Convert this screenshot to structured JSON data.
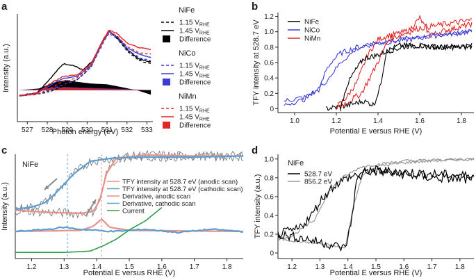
{
  "chart_data": [
    {
      "panel": "a",
      "type": "line",
      "xlabel": "Photon energy (eV)",
      "ylabel": "Intensity (a.u.)",
      "xlim": [
        526.5,
        533.3
      ],
      "xticks": [
        "527",
        "528",
        "529",
        "530",
        "531",
        "532",
        "533"
      ],
      "legend_groups": [
        {
          "title": "NiFe",
          "entries": [
            "1.15 V",
            "1.45 V",
            "Difference"
          ],
          "sub": "RHE"
        },
        {
          "title": "NiCo",
          "entries": [
            "1.15 V",
            "1.45 V",
            "Difference"
          ],
          "sub": "RHE"
        },
        {
          "title": "NiMn",
          "entries": [
            "1.15 V",
            "1.45 V",
            "Difference"
          ],
          "sub": "RHE"
        }
      ],
      "colors": {
        "NiFe": "#000000",
        "NiCo": "#3d3dd6",
        "NiMn": "#e02626"
      },
      "series": [
        {
          "name": "NiFe 1.15 V",
          "x": [
            526.6,
            527.5,
            528.2,
            528.8,
            529.5,
            530.2,
            530.8,
            531.1,
            531.5,
            532.0,
            532.6,
            533.2
          ],
          "y": [
            0.02,
            0.04,
            0.08,
            0.14,
            0.22,
            0.38,
            0.7,
            0.82,
            0.74,
            0.58,
            0.46,
            0.42
          ]
        },
        {
          "name": "NiFe 1.45 V",
          "x": [
            526.6,
            527.5,
            528.2,
            528.8,
            529.3,
            529.8,
            530.3,
            530.8,
            531.1,
            531.5,
            532.0,
            532.6,
            533.2
          ],
          "y": [
            0.02,
            0.06,
            0.25,
            0.42,
            0.4,
            0.34,
            0.46,
            0.72,
            0.83,
            0.75,
            0.6,
            0.48,
            0.44
          ]
        },
        {
          "name": "NiCo 1.15 V",
          "x": [
            526.6,
            527.5,
            528.2,
            528.8,
            529.5,
            530.2,
            530.8,
            531.1,
            531.5,
            532.0,
            532.6,
            533.2
          ],
          "y": [
            0.02,
            0.04,
            0.1,
            0.16,
            0.22,
            0.38,
            0.68,
            0.8,
            0.74,
            0.6,
            0.5,
            0.46
          ]
        },
        {
          "name": "NiCo 1.45 V",
          "x": [
            526.6,
            527.5,
            528.2,
            528.8,
            529.5,
            530.2,
            530.8,
            531.1,
            531.5,
            532.0,
            532.6,
            533.2
          ],
          "y": [
            0.02,
            0.05,
            0.16,
            0.24,
            0.26,
            0.4,
            0.7,
            0.82,
            0.76,
            0.62,
            0.54,
            0.5
          ]
        },
        {
          "name": "NiMn 1.15 V",
          "x": [
            526.6,
            527.5,
            528.2,
            528.8,
            529.5,
            530.2,
            530.8,
            531.1,
            531.5,
            532.0,
            532.6,
            533.2
          ],
          "y": [
            0.02,
            0.04,
            0.12,
            0.2,
            0.24,
            0.4,
            0.7,
            0.82,
            0.77,
            0.64,
            0.56,
            0.54
          ]
        },
        {
          "name": "NiMn 1.45 V",
          "x": [
            526.6,
            527.5,
            528.2,
            528.8,
            529.5,
            530.2,
            530.8,
            531.1,
            531.5,
            532.0,
            532.6,
            533.2
          ],
          "y": [
            0.02,
            0.05,
            0.18,
            0.26,
            0.28,
            0.42,
            0.72,
            0.84,
            0.8,
            0.68,
            0.62,
            0.6
          ]
        }
      ],
      "difference": [
        {
          "name": "NiFe Difference",
          "x": [
            526.6,
            527.6,
            528.3,
            528.9,
            529.5,
            530.2,
            531.0,
            531.8,
            532.6,
            533.2
          ],
          "y": [
            0.0,
            0.08,
            0.32,
            0.42,
            0.35,
            0.28,
            0.25,
            0.12,
            -0.02,
            -0.18
          ]
        },
        {
          "name": "NiCo Difference",
          "x": [
            526.6,
            527.6,
            528.3,
            528.9,
            529.5,
            530.2,
            531.0,
            531.8,
            532.6,
            533.2
          ],
          "y": [
            0.0,
            0.05,
            0.12,
            0.14,
            0.12,
            0.1,
            0.08,
            0.06,
            0.03,
            0.02
          ]
        },
        {
          "name": "NiMn Difference",
          "x": [
            526.6,
            527.6,
            528.3,
            528.9,
            529.5,
            530.2,
            531.0,
            531.8,
            532.6,
            533.2
          ],
          "y": [
            0.0,
            0.04,
            0.1,
            0.12,
            0.1,
            0.08,
            0.06,
            0.04,
            0.02,
            0.01
          ]
        }
      ]
    },
    {
      "panel": "b",
      "type": "line",
      "xlabel": "Potential E versus RHE (V)",
      "ylabel": "TFY intensity at 528.7 eV",
      "xlim": [
        0.92,
        1.86
      ],
      "ylim": [
        -0.05,
        1.25
      ],
      "xticks": [
        "1.0",
        "1.2",
        "1.4",
        "1.6",
        "1.8"
      ],
      "yticks": [
        "0",
        "0.2",
        "0.4",
        "0.6",
        "0.8",
        "1.0",
        "1.2"
      ],
      "legend": [
        "NiFe",
        "NiCo",
        "NiMn"
      ],
      "colors": {
        "NiFe": "#000000",
        "NiCo": "#3d3dd6",
        "NiMn": "#e02626"
      },
      "series": [
        {
          "name": "NiFe anodic",
          "x": [
            1.15,
            1.25,
            1.33,
            1.38,
            1.41,
            1.44,
            1.5,
            1.6,
            1.7,
            1.85
          ],
          "y": [
            0.0,
            0.04,
            0.1,
            0.05,
            0.28,
            0.75,
            0.82,
            0.82,
            0.8,
            0.8
          ]
        },
        {
          "name": "NiFe cathodic",
          "x": [
            1.85,
            1.7,
            1.55,
            1.45,
            1.4,
            1.33,
            1.28,
            1.25,
            1.22
          ],
          "y": [
            0.82,
            0.8,
            0.82,
            0.75,
            0.7,
            0.65,
            0.45,
            0.3,
            0.0
          ]
        },
        {
          "name": "NiCo",
          "x": [
            0.95,
            1.05,
            1.12,
            1.15,
            1.18,
            1.22,
            1.3,
            1.4,
            1.5,
            1.6,
            1.7,
            1.85
          ],
          "y": [
            0.1,
            0.15,
            0.25,
            0.5,
            0.62,
            0.72,
            0.8,
            0.85,
            0.88,
            0.92,
            0.96,
            1.0
          ]
        },
        {
          "name": "NiMn",
          "x": [
            1.2,
            1.25,
            1.3,
            1.35,
            1.4,
            1.45,
            1.5,
            1.55,
            1.6,
            1.65,
            1.7,
            1.85
          ],
          "y": [
            0.02,
            0.15,
            0.35,
            0.7,
            0.9,
            0.95,
            0.98,
            1.02,
            1.18,
            0.95,
            1.0,
            1.1
          ]
        }
      ]
    },
    {
      "panel": "c",
      "type": "line",
      "title": "NiFe",
      "xlabel": "Potential E versus RHE (V)",
      "ylabel": "Intensity (a.u.)",
      "xlim": [
        1.15,
        1.85
      ],
      "xticks": [
        "1.2",
        "1.3",
        "1.4",
        "1.5",
        "1.6",
        "1.7",
        "1.8"
      ],
      "vlines": [
        1.31,
        1.415
      ],
      "legend": [
        "TFY intensity at 528.7 eV (anodic scan)",
        "TFY intensity at 528.7 eV (cathodic scan)",
        "Derivative, anodic scan",
        "Derivative, cathodic scan",
        "Current"
      ],
      "colors": {
        "anodic": "#e8908a",
        "cathodic": "#5a9fd4",
        "current": "#2a9d4a",
        "raw": "#7a7a7a"
      },
      "series": [
        {
          "name": "TFY anodic",
          "x": [
            1.15,
            1.25,
            1.35,
            1.39,
            1.41,
            1.43,
            1.46,
            1.55,
            1.7,
            1.85
          ],
          "y": [
            0.35,
            0.33,
            0.32,
            0.34,
            0.45,
            0.7,
            0.85,
            0.88,
            0.87,
            0.87
          ]
        },
        {
          "name": "TFY cathodic",
          "x": [
            1.85,
            1.7,
            1.55,
            1.45,
            1.38,
            1.33,
            1.3,
            1.27,
            1.24,
            1.2,
            1.15
          ],
          "y": [
            0.87,
            0.86,
            0.86,
            0.85,
            0.82,
            0.7,
            0.6,
            0.5,
            0.42,
            0.38,
            0.36
          ]
        },
        {
          "name": "Derivative anodic",
          "x": [
            1.15,
            1.35,
            1.39,
            1.415,
            1.44,
            1.5,
            1.85
          ],
          "y": [
            0.0,
            0.01,
            0.05,
            0.12,
            0.04,
            0.01,
            0.0
          ]
        },
        {
          "name": "Derivative cathodic",
          "x": [
            1.15,
            1.25,
            1.3,
            1.35,
            1.45,
            1.55,
            1.65,
            1.75,
            1.85
          ],
          "y": [
            0.0,
            0.02,
            0.04,
            0.02,
            0.0,
            0.02,
            -0.01,
            0.02,
            0.0
          ]
        },
        {
          "name": "Current",
          "x": [
            1.15,
            1.3,
            1.38,
            1.42,
            1.46,
            1.5,
            1.55,
            1.6
          ],
          "y": [
            -0.08,
            -0.08,
            -0.07,
            -0.03,
            0.02,
            0.09,
            0.16,
            0.26
          ]
        }
      ]
    },
    {
      "panel": "d",
      "type": "line",
      "title": "NiFe",
      "xlabel": "Potential E versus RHE (V)",
      "ylabel": "TFY intensity (a.u.)",
      "xlim": [
        1.15,
        1.85
      ],
      "ylim": [
        0.0,
        1.05
      ],
      "xticks": [
        "1.2",
        "1.3",
        "1.4",
        "1.5",
        "1.6",
        "1.7",
        "1.8"
      ],
      "yticks": [
        "0",
        "0.2",
        "0.4",
        "0.6",
        "0.8",
        "1.0"
      ],
      "legend": [
        "528.7 eV",
        "856.2 eV"
      ],
      "colors": {
        "528.7 eV": "#000000",
        "856.2 eV": "#999999"
      },
      "series": [
        {
          "name": "528.7 eV anodic",
          "x": [
            1.15,
            1.25,
            1.35,
            1.39,
            1.41,
            1.43,
            1.46,
            1.55,
            1.7,
            1.85
          ],
          "y": [
            0.2,
            0.15,
            0.08,
            0.05,
            0.3,
            0.75,
            0.88,
            0.85,
            0.8,
            0.78
          ]
        },
        {
          "name": "528.7 eV cathodic",
          "x": [
            1.85,
            1.7,
            1.5,
            1.45,
            1.4,
            1.35,
            1.3,
            1.27,
            1.22,
            1.15
          ],
          "y": [
            0.82,
            0.84,
            0.88,
            0.85,
            0.8,
            0.72,
            0.55,
            0.4,
            0.25,
            0.2
          ]
        },
        {
          "name": "856.2 eV anodic",
          "x": [
            1.15,
            1.3,
            1.39,
            1.42,
            1.45,
            1.5,
            1.6,
            1.7,
            1.85
          ],
          "y": [
            0.15,
            0.1,
            0.05,
            0.5,
            0.82,
            0.92,
            0.96,
            0.98,
            1.0
          ]
        },
        {
          "name": "856.2 eV cathodic",
          "x": [
            1.85,
            1.6,
            1.45,
            1.38,
            1.33,
            1.28,
            1.2,
            1.15
          ],
          "y": [
            1.0,
            0.98,
            0.92,
            0.8,
            0.65,
            0.35,
            0.18,
            0.15
          ]
        }
      ]
    }
  ]
}
